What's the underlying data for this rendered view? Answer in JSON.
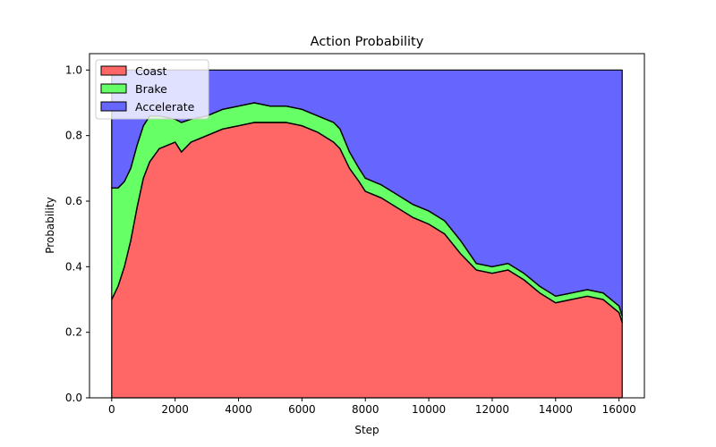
{
  "chart_data": {
    "type": "area",
    "stacked": true,
    "title": "Action Probability",
    "xlabel": "Step",
    "ylabel": "Probability",
    "xlim": [
      -700,
      16800
    ],
    "ylim": [
      0.0,
      1.05
    ],
    "xticks": [
      0,
      2000,
      4000,
      6000,
      8000,
      10000,
      12000,
      14000,
      16000
    ],
    "xtick_labels": [
      "0",
      "2000",
      "4000",
      "6000",
      "8000",
      "10000",
      "12000",
      "14000",
      "16000"
    ],
    "yticks": [
      0.0,
      0.2,
      0.4,
      0.6,
      0.8,
      1.0
    ],
    "ytick_labels": [
      "0.0",
      "0.2",
      "0.4",
      "0.6",
      "0.8",
      "1.0"
    ],
    "grid": false,
    "legend_position": "top-left",
    "x": [
      0,
      200,
      400,
      600,
      800,
      1000,
      1200,
      1500,
      2000,
      2200,
      2500,
      3000,
      3500,
      4000,
      4500,
      5000,
      5500,
      6000,
      6500,
      7000,
      7200,
      7500,
      7800,
      8000,
      8500,
      9000,
      9500,
      10000,
      10500,
      11000,
      11500,
      12000,
      12500,
      13000,
      13500,
      14000,
      14500,
      15000,
      15500,
      16000,
      16100
    ],
    "series": [
      {
        "name": "Coast",
        "color": "#ff6666",
        "values": [
          0.3,
          0.34,
          0.4,
          0.48,
          0.58,
          0.67,
          0.72,
          0.76,
          0.78,
          0.75,
          0.78,
          0.8,
          0.82,
          0.83,
          0.84,
          0.84,
          0.84,
          0.83,
          0.81,
          0.78,
          0.76,
          0.7,
          0.66,
          0.63,
          0.61,
          0.58,
          0.55,
          0.53,
          0.5,
          0.44,
          0.39,
          0.38,
          0.39,
          0.36,
          0.32,
          0.29,
          0.3,
          0.31,
          0.3,
          0.26,
          0.23
        ]
      },
      {
        "name": "Brake",
        "color": "#66ff66",
        "values": [
          0.34,
          0.3,
          0.26,
          0.22,
          0.19,
          0.16,
          0.14,
          0.1,
          0.07,
          0.09,
          0.07,
          0.06,
          0.06,
          0.06,
          0.06,
          0.05,
          0.05,
          0.05,
          0.05,
          0.06,
          0.06,
          0.05,
          0.04,
          0.04,
          0.04,
          0.04,
          0.04,
          0.04,
          0.04,
          0.04,
          0.02,
          0.02,
          0.02,
          0.02,
          0.02,
          0.02,
          0.02,
          0.02,
          0.02,
          0.02,
          0.02
        ]
      },
      {
        "name": "Accelerate",
        "color": "#6666ff",
        "values": [
          0.36,
          0.36,
          0.34,
          0.3,
          0.23,
          0.17,
          0.14,
          0.14,
          0.15,
          0.16,
          0.15,
          0.14,
          0.12,
          0.11,
          0.1,
          0.11,
          0.11,
          0.12,
          0.14,
          0.16,
          0.18,
          0.25,
          0.3,
          0.33,
          0.35,
          0.38,
          0.41,
          0.43,
          0.46,
          0.52,
          0.59,
          0.6,
          0.59,
          0.62,
          0.66,
          0.69,
          0.68,
          0.67,
          0.68,
          0.72,
          0.75
        ]
      }
    ]
  }
}
